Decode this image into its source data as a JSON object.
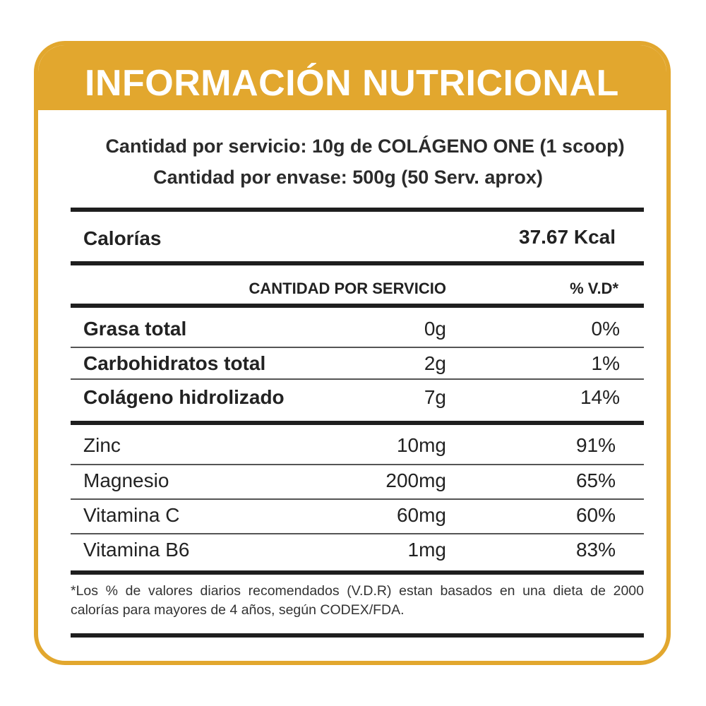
{
  "header": {
    "title": "INFORMACIÓN NUTRICIONAL"
  },
  "serving": {
    "line1": "Cantidad por servicio: 10g de COLÁGENO ONE (1 scoop)",
    "line2": "Cantidad por envase: 500g (50 Serv. aprox)"
  },
  "calories": {
    "label": "Calorías",
    "value": "37.67 Kcal"
  },
  "subheader": {
    "amount": "CANTIDAD POR SERVICIO",
    "dv": "% V.D*"
  },
  "macros": [
    {
      "name": "Grasa total",
      "amount": "0g",
      "dv": "0%"
    },
    {
      "name": "Carbohidratos total",
      "amount": "2g",
      "dv": "1%"
    },
    {
      "name": "Colágeno hidrolizado",
      "amount": "7g",
      "dv": "14%"
    }
  ],
  "micros": [
    {
      "name": "Zinc",
      "amount": "10mg",
      "dv": "91%"
    },
    {
      "name": "Magnesio",
      "amount": "200mg",
      "dv": "65%"
    },
    {
      "name": "Vitamina C",
      "amount": "60mg",
      "dv": "60%"
    },
    {
      "name": "Vitamina B6",
      "amount": "1mg",
      "dv": "83%"
    }
  ],
  "footnote": "*Los % de valores diarios recomendados (V.D.R) estan basados en una dieta de 2000 calorías para mayores de 4 años, según CODEX/FDA.",
  "colors": {
    "accent": "#e2a72e",
    "text": "#222222",
    "rule": "#1e1e1e"
  }
}
